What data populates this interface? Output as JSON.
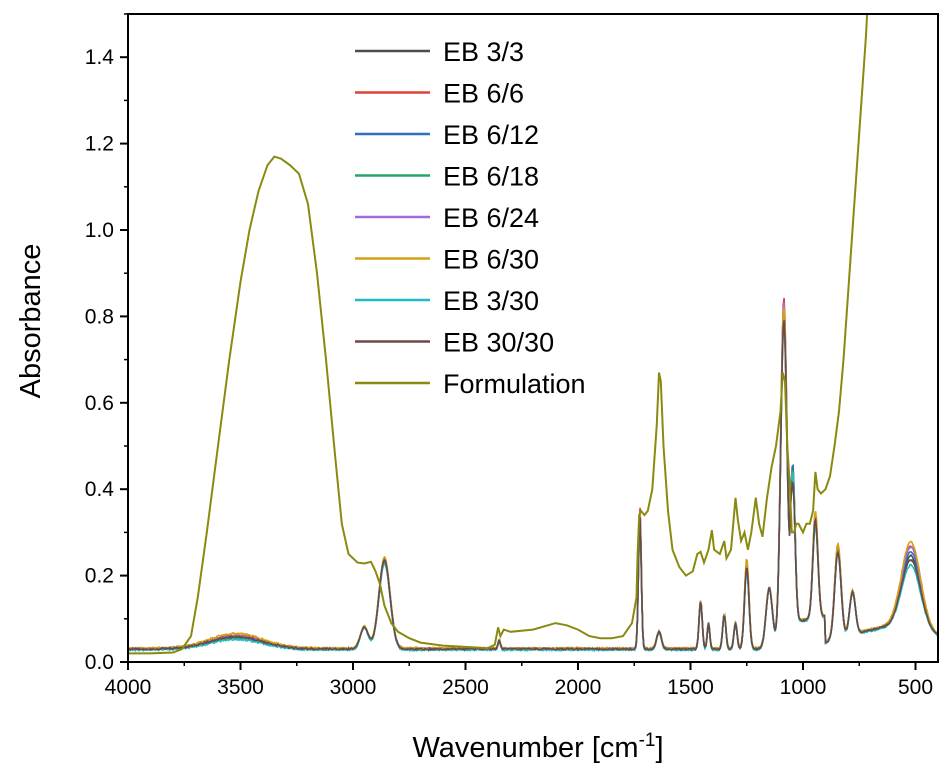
{
  "chart_data": {
    "type": "line",
    "title": "",
    "xlabel": "Wavenumber [cm",
    "xlabel_sup": "-1",
    "xlabel_end": "]",
    "ylabel": "Absorbance",
    "xlim": [
      4000,
      400
    ],
    "x_reversed": true,
    "ylim": [
      0,
      1.5
    ],
    "x_ticks": [
      4000,
      3500,
      3000,
      2500,
      2000,
      1500,
      1000,
      500
    ],
    "x_tick_labels": [
      "4000",
      "3500",
      "3000",
      "2500",
      "2000",
      "1500",
      "1000",
      "500"
    ],
    "y_ticks": [
      0.0,
      0.2,
      0.4,
      0.6,
      0.8,
      1.0,
      1.2,
      1.4
    ],
    "y_tick_labels": [
      "0.0",
      "0.2",
      "0.4",
      "0.6",
      "0.8",
      "1.0",
      "1.2",
      "1.4"
    ],
    "grid": false,
    "legend_position": "top-center",
    "series": [
      {
        "name": "EB 3/3",
        "color": "#4d4d4d",
        "base": 0.03,
        "broad": 0.058,
        "peaks": {
          "2860": 0.235,
          "1725": 0.33,
          "1250": 0.22,
          "1085": 0.79,
          "1045": 0.43,
          "945": 0.34,
          "845": 0.3
        },
        "tail": 0.22
      },
      {
        "name": "EB 6/6",
        "color": "#e0403c",
        "base": 0.031,
        "broad": 0.062,
        "peaks": {
          "2860": 0.24,
          "1725": 0.36,
          "1250": 0.23,
          "1085": 0.84,
          "1045": 0.45,
          "945": 0.35,
          "845": 0.3
        },
        "tail": 0.24
      },
      {
        "name": "EB 6/12",
        "color": "#2f6fbf",
        "base": 0.03,
        "broad": 0.056,
        "peaks": {
          "2860": 0.232,
          "1725": 0.34,
          "1250": 0.22,
          "1085": 0.81,
          "1045": 0.46,
          "945": 0.34,
          "845": 0.3
        },
        "tail": 0.23
      },
      {
        "name": "EB 6/18",
        "color": "#2aa36b",
        "base": 0.03,
        "broad": 0.055,
        "peaks": {
          "2860": 0.23,
          "1725": 0.34,
          "1250": 0.22,
          "1085": 0.8,
          "1045": 0.45,
          "945": 0.33,
          "845": 0.29
        },
        "tail": 0.21
      },
      {
        "name": "EB 6/24",
        "color": "#a26ad8",
        "base": 0.031,
        "broad": 0.06,
        "peaks": {
          "2860": 0.238,
          "1725": 0.35,
          "1250": 0.23,
          "1085": 0.83,
          "1045": 0.44,
          "945": 0.35,
          "845": 0.31
        },
        "tail": 0.24
      },
      {
        "name": "EB 6/30",
        "color": "#d4a015",
        "base": 0.032,
        "broad": 0.066,
        "peaks": {
          "2860": 0.242,
          "1725": 0.35,
          "1250": 0.24,
          "1085": 0.82,
          "1045": 0.44,
          "945": 0.36,
          "845": 0.31
        },
        "tail": 0.25
      },
      {
        "name": "EB 3/30",
        "color": "#1fbcc4",
        "base": 0.028,
        "broad": 0.052,
        "peaks": {
          "2860": 0.228,
          "1725": 0.33,
          "1250": 0.21,
          "1085": 0.78,
          "1045": 0.44,
          "945": 0.33,
          "845": 0.29
        },
        "tail": 0.2
      },
      {
        "name": "EB 30/30",
        "color": "#6b4a45",
        "base": 0.03,
        "broad": 0.058,
        "peaks": {
          "2860": 0.236,
          "1725": 0.34,
          "1250": 0.22,
          "1085": 0.79,
          "1045": 0.42,
          "945": 0.34,
          "845": 0.29
        },
        "tail": 0.21
      }
    ],
    "formulation": {
      "name": "Formulation",
      "color": "#8a8a10",
      "points": [
        [
          4000,
          0.02
        ],
        [
          3900,
          0.02
        ],
        [
          3800,
          0.022
        ],
        [
          3760,
          0.03
        ],
        [
          3720,
          0.06
        ],
        [
          3690,
          0.15
        ],
        [
          3650,
          0.3
        ],
        [
          3600,
          0.5
        ],
        [
          3550,
          0.7
        ],
        [
          3500,
          0.88
        ],
        [
          3460,
          1.0
        ],
        [
          3420,
          1.09
        ],
        [
          3380,
          1.15
        ],
        [
          3350,
          1.17
        ],
        [
          3320,
          1.165
        ],
        [
          3280,
          1.15
        ],
        [
          3240,
          1.13
        ],
        [
          3200,
          1.06
        ],
        [
          3160,
          0.9
        ],
        [
          3120,
          0.7
        ],
        [
          3080,
          0.48
        ],
        [
          3050,
          0.32
        ],
        [
          3020,
          0.25
        ],
        [
          2980,
          0.23
        ],
        [
          2950,
          0.228
        ],
        [
          2920,
          0.232
        ],
        [
          2900,
          0.21
        ],
        [
          2880,
          0.18
        ],
        [
          2860,
          0.13
        ],
        [
          2830,
          0.09
        ],
        [
          2800,
          0.07
        ],
        [
          2750,
          0.055
        ],
        [
          2700,
          0.045
        ],
        [
          2600,
          0.038
        ],
        [
          2500,
          0.035
        ],
        [
          2400,
          0.032
        ],
        [
          2370,
          0.04
        ],
        [
          2355,
          0.08
        ],
        [
          2345,
          0.06
        ],
        [
          2330,
          0.075
        ],
        [
          2300,
          0.07
        ],
        [
          2200,
          0.075
        ],
        [
          2100,
          0.09
        ],
        [
          2050,
          0.085
        ],
        [
          2000,
          0.075
        ],
        [
          1950,
          0.06
        ],
        [
          1900,
          0.055
        ],
        [
          1850,
          0.055
        ],
        [
          1800,
          0.06
        ],
        [
          1760,
          0.09
        ],
        [
          1740,
          0.15
        ],
        [
          1735,
          0.25
        ],
        [
          1728,
          0.34
        ],
        [
          1720,
          0.35
        ],
        [
          1705,
          0.34
        ],
        [
          1690,
          0.35
        ],
        [
          1670,
          0.4
        ],
        [
          1650,
          0.55
        ],
        [
          1640,
          0.67
        ],
        [
          1632,
          0.65
        ],
        [
          1620,
          0.5
        ],
        [
          1600,
          0.35
        ],
        [
          1580,
          0.26
        ],
        [
          1550,
          0.22
        ],
        [
          1520,
          0.2
        ],
        [
          1490,
          0.21
        ],
        [
          1470,
          0.25
        ],
        [
          1455,
          0.255
        ],
        [
          1440,
          0.23
        ],
        [
          1420,
          0.26
        ],
        [
          1405,
          0.305
        ],
        [
          1395,
          0.26
        ],
        [
          1370,
          0.25
        ],
        [
          1350,
          0.28
        ],
        [
          1340,
          0.24
        ],
        [
          1320,
          0.26
        ],
        [
          1300,
          0.38
        ],
        [
          1290,
          0.33
        ],
        [
          1275,
          0.28
        ],
        [
          1260,
          0.3
        ],
        [
          1245,
          0.26
        ],
        [
          1230,
          0.3
        ],
        [
          1210,
          0.38
        ],
        [
          1195,
          0.32
        ],
        [
          1180,
          0.29
        ],
        [
          1160,
          0.38
        ],
        [
          1140,
          0.45
        ],
        [
          1120,
          0.5
        ],
        [
          1100,
          0.58
        ],
        [
          1090,
          0.67
        ],
        [
          1080,
          0.65
        ],
        [
          1070,
          0.5
        ],
        [
          1060,
          0.42
        ],
        [
          1050,
          0.3
        ],
        [
          1040,
          0.3
        ],
        [
          1030,
          0.32
        ],
        [
          1020,
          0.32
        ],
        [
          1000,
          0.3
        ],
        [
          985,
          0.32
        ],
        [
          970,
          0.32
        ],
        [
          955,
          0.35
        ],
        [
          945,
          0.44
        ],
        [
          935,
          0.4
        ],
        [
          920,
          0.39
        ],
        [
          900,
          0.4
        ],
        [
          880,
          0.43
        ],
        [
          860,
          0.5
        ],
        [
          840,
          0.58
        ],
        [
          820,
          0.7
        ],
        [
          800,
          0.85
        ],
        [
          780,
          1.0
        ],
        [
          760,
          1.15
        ],
        [
          740,
          1.3
        ],
        [
          720,
          1.45
        ],
        [
          715,
          1.5
        ]
      ]
    }
  }
}
